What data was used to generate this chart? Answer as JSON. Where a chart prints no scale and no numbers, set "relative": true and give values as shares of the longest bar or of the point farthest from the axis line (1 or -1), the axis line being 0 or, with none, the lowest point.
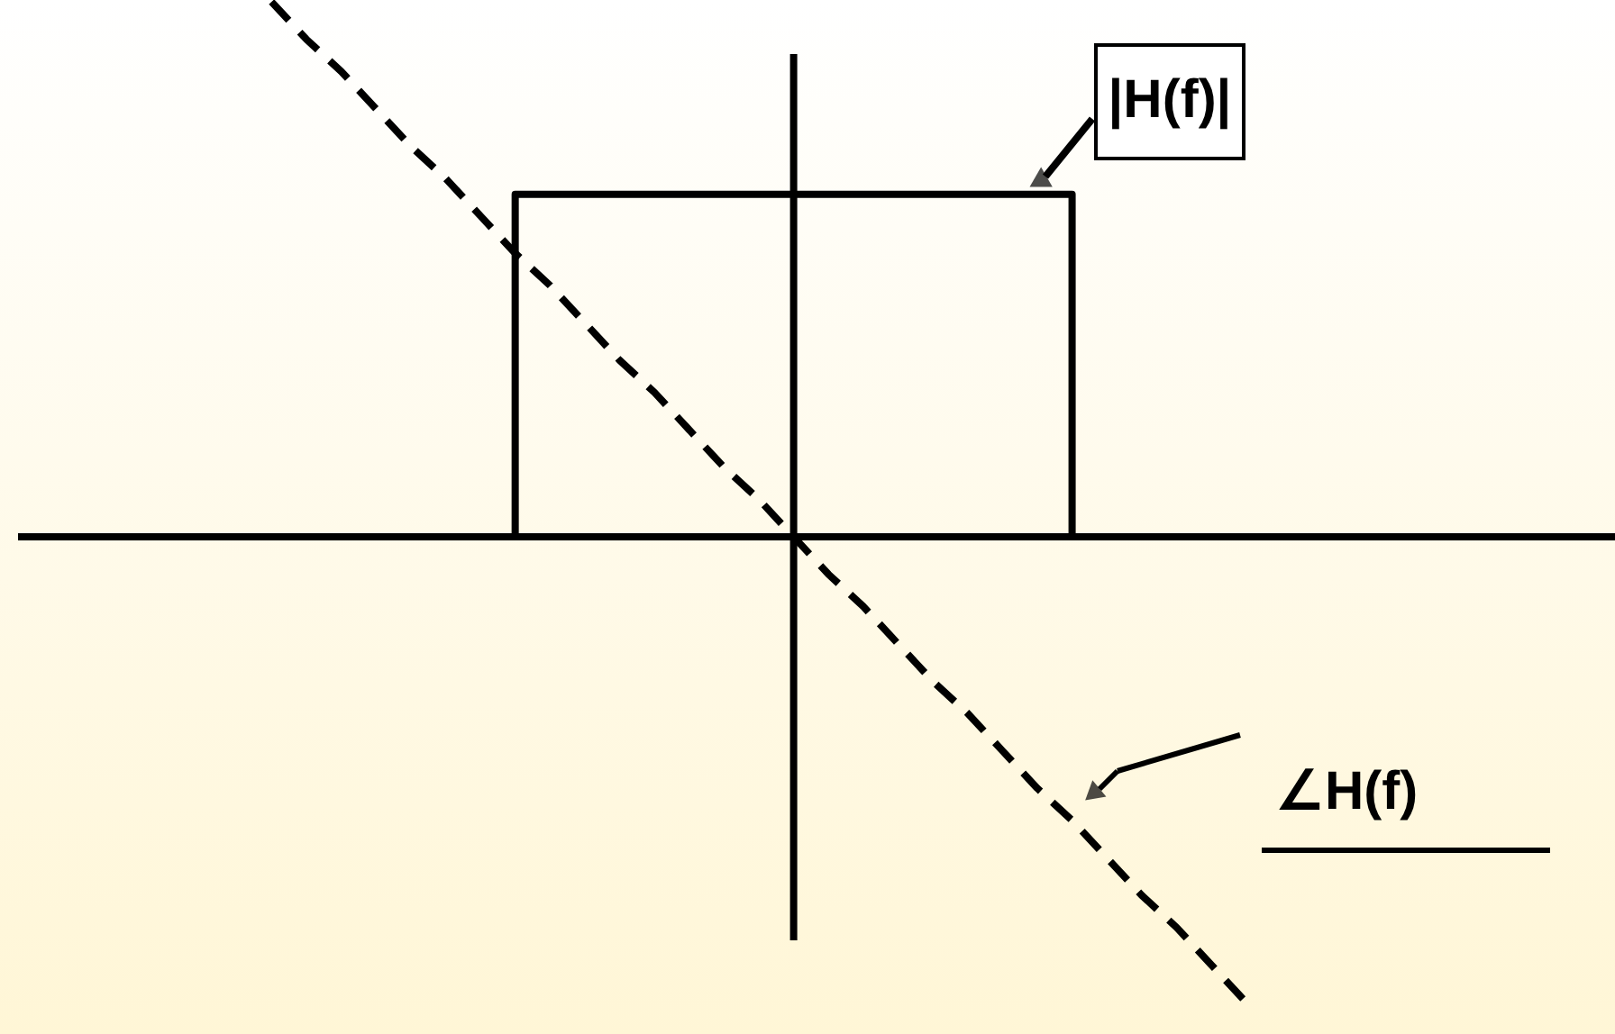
{
  "chart_data": {
    "type": "line",
    "relative": true,
    "marker": "none",
    "categories": [
      null,
      null,
      null,
      null,
      null,
      null,
      null,
      null,
      null,
      null,
      null,
      null,
      null,
      null,
      null,
      null,
      null,
      null,
      null,
      null,
      null,
      null,
      null,
      null,
      null,
      null,
      null,
      null,
      null
    ],
    "series": [
      {
        "type": "step",
        "color": "#000000",
        "line_style": "solid",
        "values": [
          null,
          null,
          null,
          null,
          null,
          null,
          0,
          0.64,
          0.64,
          0.64,
          0.64,
          0.64,
          0.64,
          0.64,
          0.64,
          0.64,
          0.64,
          0.64,
          0.64,
          0.64,
          0.64,
          0.64,
          0.64,
          0,
          null,
          null,
          null,
          null,
          null
        ]
      },
      {
        "type": "line",
        "color": "#000000",
        "line_style": "dashed",
        "values": [
          1,
          0.93,
          0.87,
          0.8,
          0.73,
          0.67,
          0.6,
          0.53,
          0.47,
          0.4,
          0.33,
          0.27,
          0.2,
          0.13,
          0.07,
          0,
          -0.07,
          -0.13,
          -0.2,
          -0.27,
          -0.33,
          -0.4,
          -0.47,
          -0.53,
          -0.6,
          -0.67,
          -0.73,
          -0.8,
          -0.87
        ]
      }
    ],
    "annotations": [
      "|H(f)|",
      "∠H(f)"
    ]
  }
}
